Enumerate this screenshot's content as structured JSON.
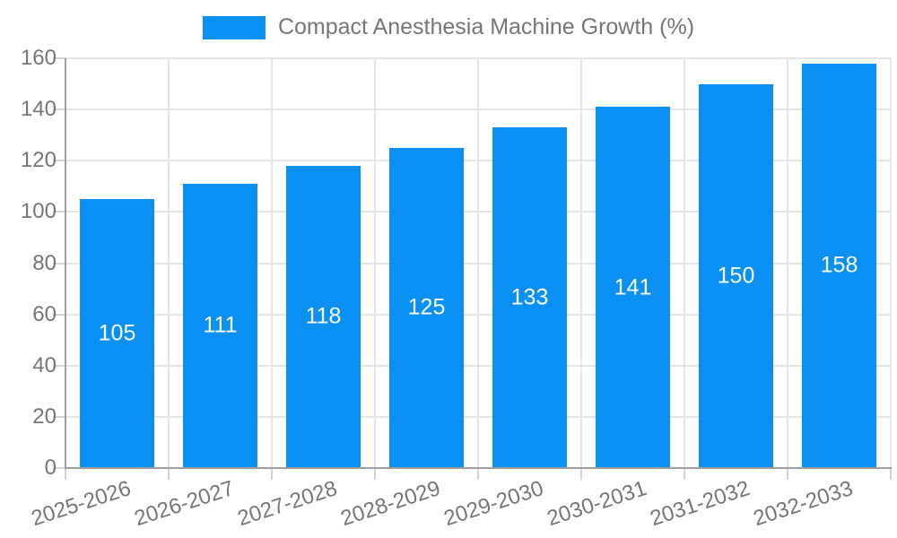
{
  "legend": {
    "label": "Compact Anesthesia Machine Growth (%)"
  },
  "colors": {
    "bar": "#0a8ff2",
    "grid": "#e5e5e5",
    "axis": "#9e9e9e",
    "tick": "#d2d2d2",
    "text": "#757575",
    "value_text": "#ffffff",
    "background": "#ffffff"
  },
  "chart_data": {
    "type": "bar",
    "title": "Compact Anesthesia Machine Growth (%)",
    "categories": [
      "2025-2026",
      "2026-2027",
      "2027-2028",
      "2028-2029",
      "2029-2030",
      "2030-2031",
      "2031-2032",
      "2032-2033"
    ],
    "values": [
      105,
      111,
      118,
      125,
      133,
      141,
      150,
      158
    ],
    "xlabel": "",
    "ylabel": "",
    "ylim": [
      0,
      160
    ],
    "ytick_step": 20,
    "grid": true,
    "legend_position": "top-center",
    "value_labels": "inside-center"
  }
}
